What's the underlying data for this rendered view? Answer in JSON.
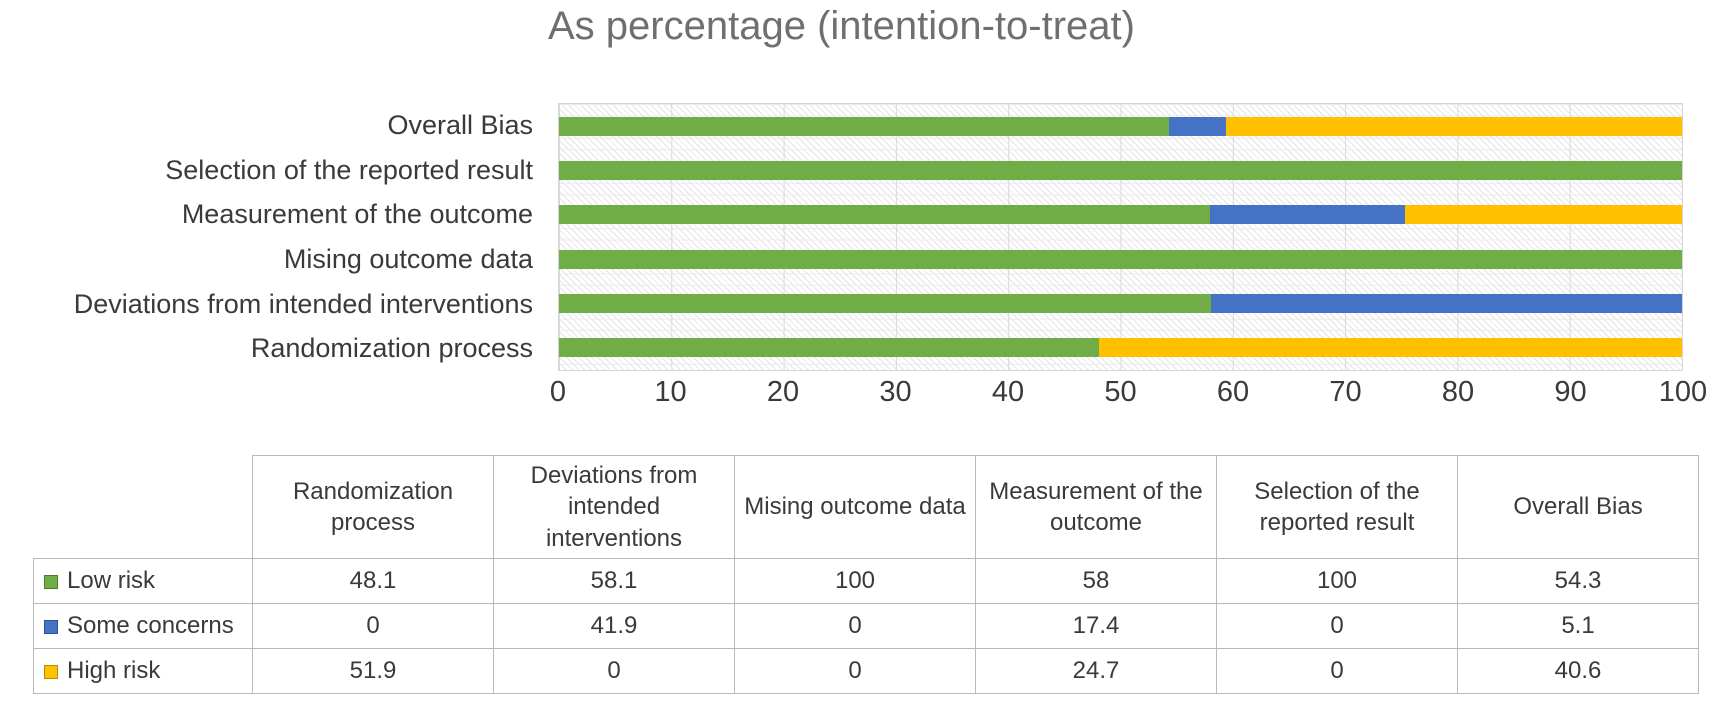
{
  "title": "As percentage (intention-to-treat)",
  "chart_data": {
    "type": "bar",
    "orientation": "horizontal-stacked",
    "title": "As percentage (intention-to-treat)",
    "xlabel": "",
    "ylabel": "",
    "xlim": [
      0,
      100
    ],
    "grid": true,
    "plot_background": "diagonal-hatch",
    "ticks": [
      "0",
      "10",
      "20",
      "30",
      "40",
      "50",
      "60",
      "70",
      "80",
      "90",
      "100"
    ],
    "categories": [
      "Randomization process",
      "Deviations from intended interventions",
      "Mising outcome data",
      "Measurement of the outcome",
      "Selection of the reported result",
      "Overall Bias"
    ],
    "bars_top_to_bottom": [
      "Overall Bias",
      "Selection of the reported result",
      "Measurement of the outcome",
      "Mising outcome data",
      "Deviations from intended interventions",
      "Randomization process"
    ],
    "series": [
      {
        "name": "Low risk",
        "color": "#70AD47",
        "values": [
          48.1,
          58.1,
          100,
          58,
          100,
          54.3
        ]
      },
      {
        "name": "Some concerns",
        "color": "#4472C4",
        "values": [
          0,
          41.9,
          0,
          17.4,
          0,
          5.1
        ]
      },
      {
        "name": "High risk",
        "color": "#FFC000",
        "values": [
          51.9,
          0,
          0,
          24.7,
          0,
          40.6
        ]
      }
    ],
    "legend_position": "table-left"
  }
}
